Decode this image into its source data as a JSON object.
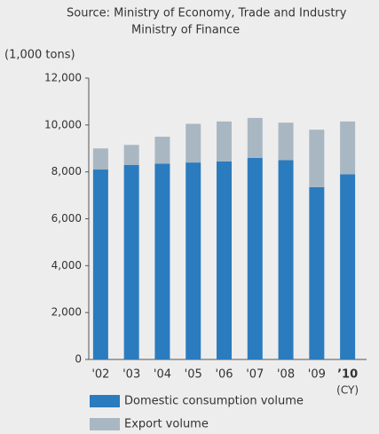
{
  "chart_data": {
    "type": "stacked_bar",
    "source": [
      "Source: Ministry of Economy, Trade and Industry",
      "Ministry of Finance"
    ],
    "y_label": "(1,000 tons)",
    "x_unit": "(CY)",
    "categories": [
      "'02",
      "'03",
      "'04",
      "'05",
      "'06",
      "'07",
      "'08",
      "'09",
      "’10"
    ],
    "series": [
      {
        "name": "Domestic consumption volume",
        "color": "#2b7bbf",
        "values": [
          8100,
          8300,
          8350,
          8400,
          8450,
          8600,
          8500,
          7350,
          7900
        ]
      },
      {
        "name": "Export volume",
        "color": "#a9b7c2",
        "values": [
          900,
          850,
          1150,
          1650,
          1700,
          1700,
          1600,
          2450,
          2250
        ]
      }
    ],
    "ylim": [
      0,
      12000
    ],
    "yticks": [
      {
        "value": 0,
        "label": "0"
      },
      {
        "value": 2000,
        "label": "2,000"
      },
      {
        "value": 4000,
        "label": "4,000"
      },
      {
        "value": 6000,
        "label": "6,000"
      },
      {
        "value": 8000,
        "label": "8,000"
      },
      {
        "value": 10000,
        "label": "10,000"
      },
      {
        "value": 12000,
        "label": "12,000"
      }
    ],
    "grid": false
  }
}
